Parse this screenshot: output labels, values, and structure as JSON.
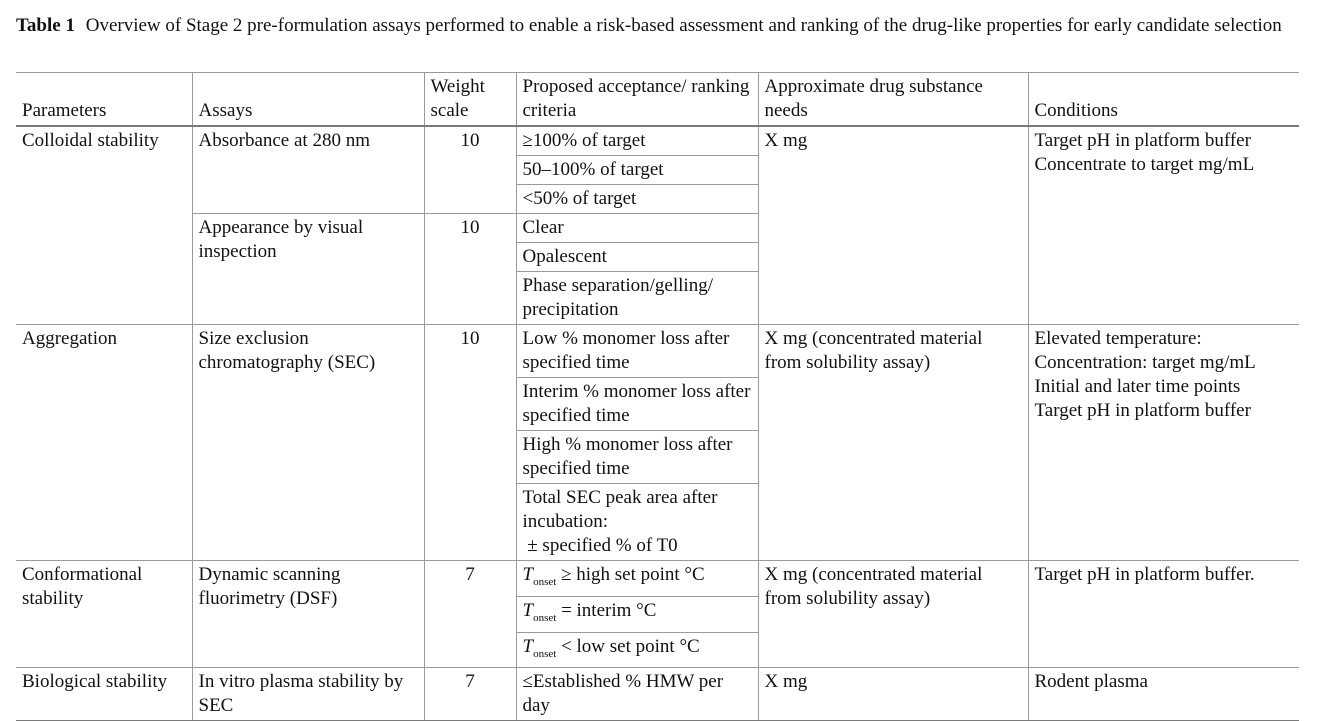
{
  "caption": {
    "label": "Table 1",
    "text": "Overview of Stage 2 pre-formulation assays performed to enable a risk-based assessment and ranking of the drug-like properties for early candidate selection"
  },
  "headers": {
    "parameters": "Parameters",
    "assays": "Assays",
    "weight": "Weight scale",
    "criteria": "Proposed acceptance/ ranking criteria",
    "needs": "Approximate drug substance needs",
    "conditions": "Conditions"
  },
  "colloidal": {
    "parameter": "Colloidal stability",
    "needs": "X mg",
    "conditions_1": "Target pH in platform buffer",
    "conditions_2": "Concentrate to target mg/mL",
    "absorbance": {
      "assay": "Absorbance at 280 nm",
      "weight": "10",
      "criteria": [
        "≥100% of target",
        "50–100% of target",
        "<50% of target"
      ]
    },
    "appearance": {
      "assay": "Appearance by visual inspection",
      "weight": "10",
      "criteria": [
        "Clear",
        "Opalescent",
        "Phase separation/gelling/ precipitation"
      ]
    }
  },
  "aggregation": {
    "parameter": "Aggregation",
    "assay": "Size exclusion chromatography (SEC)",
    "weight": "10",
    "criteria": [
      "Low % monomer loss after specified time",
      "Interim % monomer loss after specified time",
      "High % monomer loss after specified time",
      "Total SEC peak area after incubation:"
    ],
    "criteria_4b": " ± specified % of T0",
    "needs": "X mg (concentrated material from solubility assay)",
    "conditions": [
      "Elevated temperature:",
      "Concentration: target mg/mL",
      "Initial and later time points",
      "Target pH in platform buffer"
    ]
  },
  "conformational": {
    "parameter": "Conformational stability",
    "assay": "Dynamic scanning fluorimetry (DSF)",
    "weight": "7",
    "t_symbol": "T",
    "t_sub": "onset",
    "criteria": [
      " ≥ high set point °C",
      " = interim °C",
      " < low set point °C"
    ],
    "needs": "X mg (concentrated material from solubility assay)",
    "conditions": "Target pH in platform buffer."
  },
  "biological": {
    "parameter": "Biological stability",
    "assay": "In vitro plasma stability by SEC",
    "weight": "7",
    "criteria": "≤Established % HMW per day",
    "needs": "X mg",
    "conditions": "Rodent plasma"
  }
}
